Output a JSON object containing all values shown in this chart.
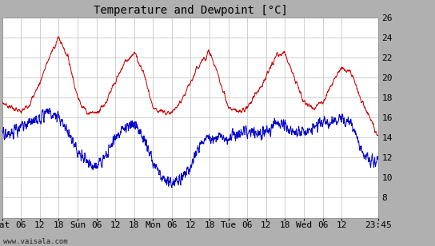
{
  "title": "Temperature and Dewpoint [°C]",
  "xlabel_labels": [
    "Sat",
    "06",
    "12",
    "18",
    "Sun",
    "06",
    "12",
    "18",
    "Mon",
    "06",
    "12",
    "18",
    "Tue",
    "06",
    "12",
    "18",
    "Wed",
    "06",
    "12",
    "23:45"
  ],
  "ylim": [
    6,
    26
  ],
  "yticks": [
    8,
    10,
    12,
    14,
    16,
    18,
    20,
    22,
    24,
    26
  ],
  "fig_bg_color": "#b0b0b0",
  "plot_bg_color": "#ffffff",
  "grid_color": "#c8c8c8",
  "temp_color": "#cc0000",
  "dewpoint_color": "#0000cc",
  "title_fontsize": 10,
  "tick_fontsize": 8,
  "watermark": "www.vaisala.com",
  "total_hours": 119.75,
  "n_points": 2000,
  "temp_keypoints_t": [
    0,
    3,
    6,
    9,
    12,
    15,
    18,
    21,
    24,
    27,
    30,
    33,
    36,
    39,
    42,
    45,
    48,
    51,
    54,
    57,
    60,
    63,
    66,
    69,
    72,
    75,
    78,
    81,
    84,
    87,
    90,
    93,
    96,
    99,
    102,
    105,
    108,
    111,
    114,
    117,
    119.75
  ],
  "temp_keypoints_v": [
    17.5,
    17.0,
    16.5,
    17.5,
    19.5,
    22.0,
    24.0,
    22.0,
    18.0,
    16.5,
    16.5,
    17.5,
    19.5,
    21.5,
    22.5,
    20.5,
    17.0,
    16.5,
    16.5,
    17.5,
    19.5,
    21.5,
    22.5,
    20.0,
    17.0,
    16.5,
    17.0,
    18.5,
    20.0,
    22.0,
    22.5,
    20.0,
    17.5,
    17.0,
    17.5,
    19.5,
    21.0,
    20.5,
    18.0,
    16.0,
    14.0
  ],
  "dew_keypoints_t": [
    0,
    3,
    6,
    9,
    12,
    15,
    18,
    21,
    24,
    27,
    30,
    33,
    36,
    39,
    42,
    45,
    48,
    51,
    54,
    57,
    60,
    63,
    66,
    69,
    72,
    75,
    78,
    81,
    84,
    87,
    90,
    93,
    96,
    99,
    102,
    105,
    108,
    111,
    114,
    117,
    119.75
  ],
  "dew_keypoints_v": [
    14.5,
    14.5,
    15.0,
    15.5,
    16.0,
    16.5,
    16.0,
    14.5,
    12.5,
    11.5,
    11.0,
    12.0,
    14.0,
    15.0,
    15.5,
    14.0,
    11.5,
    10.0,
    9.5,
    10.0,
    11.0,
    13.5,
    14.0,
    14.0,
    14.0,
    14.5,
    14.5,
    14.5,
    14.5,
    15.5,
    15.0,
    14.5,
    14.5,
    15.0,
    15.5,
    15.5,
    16.0,
    15.5,
    13.0,
    11.5,
    11.5
  ],
  "noise_temp_scale": 0.35,
  "noise_dew_scale": 0.55,
  "smooth_temp": 8,
  "smooth_dew": 4
}
